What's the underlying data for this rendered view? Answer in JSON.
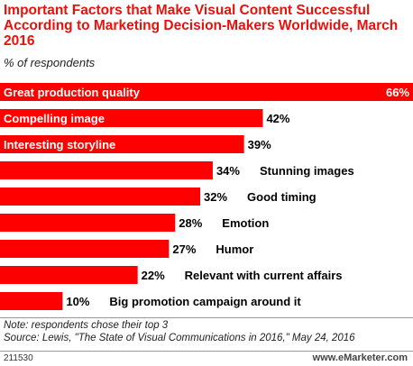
{
  "chart_data": {
    "type": "bar",
    "orientation": "horizontal",
    "title": "Important Factors that Make Visual Content Successful According to Marketing Decision-Makers Worldwide, March 2016",
    "subtitle": "% of respondents",
    "categories": [
      "Great production quality",
      "Compelling image",
      "Interesting storyline",
      "Stunning images",
      "Good timing",
      "Emotion",
      "Humor",
      "Relevant with current affairs",
      "Big promotion campaign around it"
    ],
    "values": [
      66,
      42,
      39,
      34,
      32,
      28,
      27,
      22,
      10
    ],
    "value_labels": [
      "66%",
      "42%",
      "39%",
      "34%",
      "32%",
      "28%",
      "27%",
      "22%",
      "10%"
    ],
    "xlim": [
      0,
      66
    ],
    "grid": false,
    "bar_color": "#ff0000"
  },
  "note": "Note: respondents chose their top 3",
  "source": "Source: Lewis, \"The State of Visual Communications in 2016,\" May 24, 2016",
  "footer": {
    "id": "211530",
    "brand": "www.eMarketer.com"
  }
}
